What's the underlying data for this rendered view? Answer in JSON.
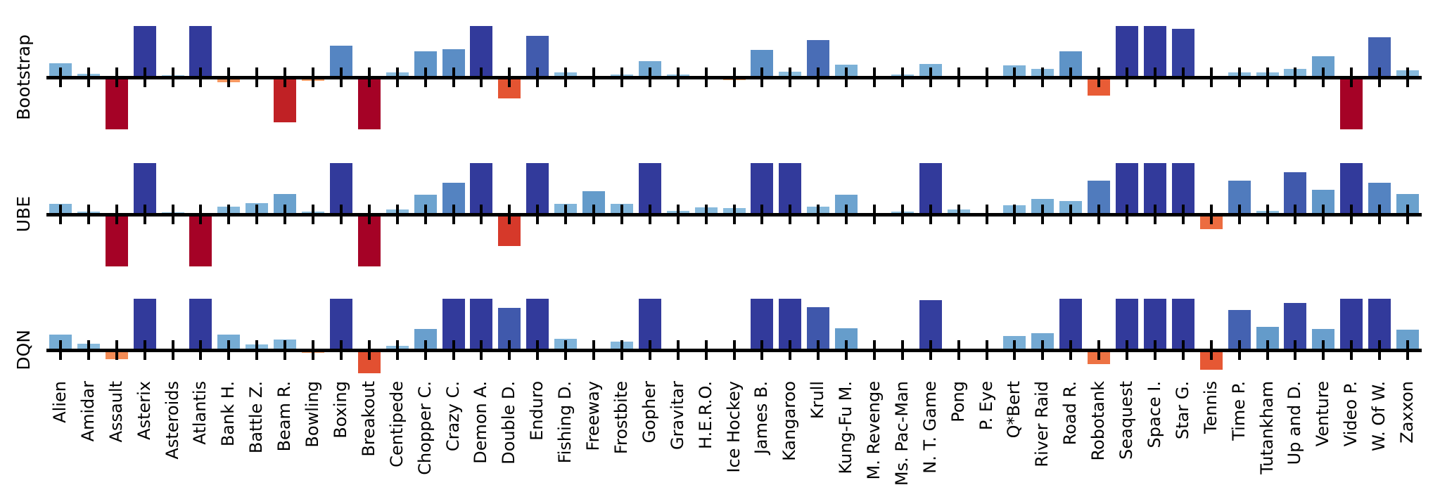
{
  "figure": {
    "background": "#ffffff",
    "axis_color": "#000000"
  },
  "chart_data": {
    "type": "bar",
    "title": "",
    "xlabel": "",
    "ylabel": "",
    "grid": false,
    "legend": false,
    "ylim": [
      -1,
      1
    ],
    "values_clipped_at": 1.0,
    "orientation": "vertical",
    "panel_layout": "3 stacked rows sharing one categorical x-axis, tick labels rotated 90",
    "bar_color_rule": "diverging colormap by signed magnitude: blues positive, orange/reds negative",
    "positive_color_stops": [
      [
        0.0,
        "#9ecbe6"
      ],
      [
        0.07,
        "#8fc0e0"
      ],
      [
        0.27,
        "#7aafd6"
      ],
      [
        0.45,
        "#649bca"
      ],
      [
        0.61,
        "#5585c2"
      ],
      [
        0.75,
        "#4769b4"
      ],
      [
        0.88,
        "#3a4ba5"
      ],
      [
        1.0,
        "#323a9b"
      ]
    ],
    "negative_color_stops": [
      [
        0.0,
        "#fab381"
      ],
      [
        0.08,
        "#f79c66"
      ],
      [
        0.2,
        "#f2854f"
      ],
      [
        0.35,
        "#e85c36"
      ],
      [
        0.5,
        "#de482d"
      ],
      [
        0.7,
        "#d02c28"
      ],
      [
        0.86,
        "#c02125"
      ],
      [
        1.0,
        "#a50226"
      ]
    ],
    "categories": [
      "Alien",
      "Amidar",
      "Assault",
      "Asterix",
      "Asteroids",
      "Atlantis",
      "Bank H.",
      "Battle Z.",
      "Beam R.",
      "Bowling",
      "Boxing",
      "Breakout",
      "Centipede",
      "Chopper C.",
      "Crazy C.",
      "Demon A.",
      "Double D.",
      "Enduro",
      "Fishing D.",
      "Freeway",
      "Frostbite",
      "Gopher",
      "Gravitar",
      "H.E.R.O.",
      "Ice Hockey",
      "James B.",
      "Kangaroo",
      "Krull",
      "Kung-Fu M.",
      "M. Revenge",
      "Ms. Pac-Man",
      "N. T. Game",
      "Pong",
      "P. Eye",
      "Q*Bert",
      "River Raid",
      "Road R.",
      "Robotank",
      "Seaquest",
      "Space I.",
      "Star G.",
      "Tennis",
      "Time P.",
      "Tutankham",
      "Up and D.",
      "Venture",
      "Video P.",
      "W. Of W.",
      "Zaxxon"
    ],
    "series": [
      {
        "name": "Bootstrap",
        "values": [
          0.27,
          0.07,
          -1.0,
          1.0,
          0.04,
          1.0,
          -0.1,
          0.0,
          -0.86,
          -0.07,
          0.61,
          -1.0,
          0.1,
          0.5,
          0.55,
          1.0,
          -0.41,
          0.81,
          0.1,
          0.0,
          0.05,
          0.32,
          0.06,
          0.0,
          -0.05,
          0.54,
          0.11,
          0.73,
          0.25,
          0.0,
          0.05,
          0.26,
          0.0,
          0.0,
          0.23,
          0.16,
          0.51,
          -0.35,
          1.0,
          1.0,
          0.95,
          -0.03,
          0.09,
          0.09,
          0.17,
          0.41,
          -1.0,
          0.78,
          0.14
        ]
      },
      {
        "name": "UBE",
        "values": [
          0.21,
          0.05,
          -1.0,
          1.0,
          0.04,
          -1.0,
          0.15,
          0.22,
          0.4,
          0.06,
          1.0,
          -1.0,
          0.1,
          0.38,
          0.62,
          1.0,
          -0.61,
          1.0,
          0.2,
          0.45,
          0.2,
          1.0,
          0.07,
          0.14,
          0.12,
          1.0,
          1.0,
          0.15,
          0.38,
          -0.04,
          0.05,
          1.0,
          0.09,
          0.0,
          0.18,
          0.3,
          0.26,
          0.66,
          1.0,
          1.0,
          1.0,
          -0.29,
          0.66,
          0.07,
          0.82,
          0.48,
          1.0,
          0.62,
          0.4
        ]
      },
      {
        "name": "DQN",
        "values": [
          0.3,
          0.13,
          -0.17,
          1.0,
          0.02,
          1.0,
          0.3,
          0.11,
          0.2,
          -0.05,
          1.0,
          -0.44,
          0.08,
          0.41,
          1.0,
          1.0,
          0.82,
          1.0,
          0.22,
          0.03,
          0.16,
          1.0,
          0.02,
          0.02,
          -0.04,
          1.0,
          1.0,
          0.83,
          0.43,
          0.0,
          0.03,
          0.97,
          0.0,
          0.0,
          0.28,
          0.33,
          1.0,
          -0.27,
          1.0,
          1.0,
          1.0,
          -0.38,
          0.78,
          0.45,
          0.92,
          0.41,
          1.0,
          1.0,
          0.4
        ]
      }
    ]
  }
}
